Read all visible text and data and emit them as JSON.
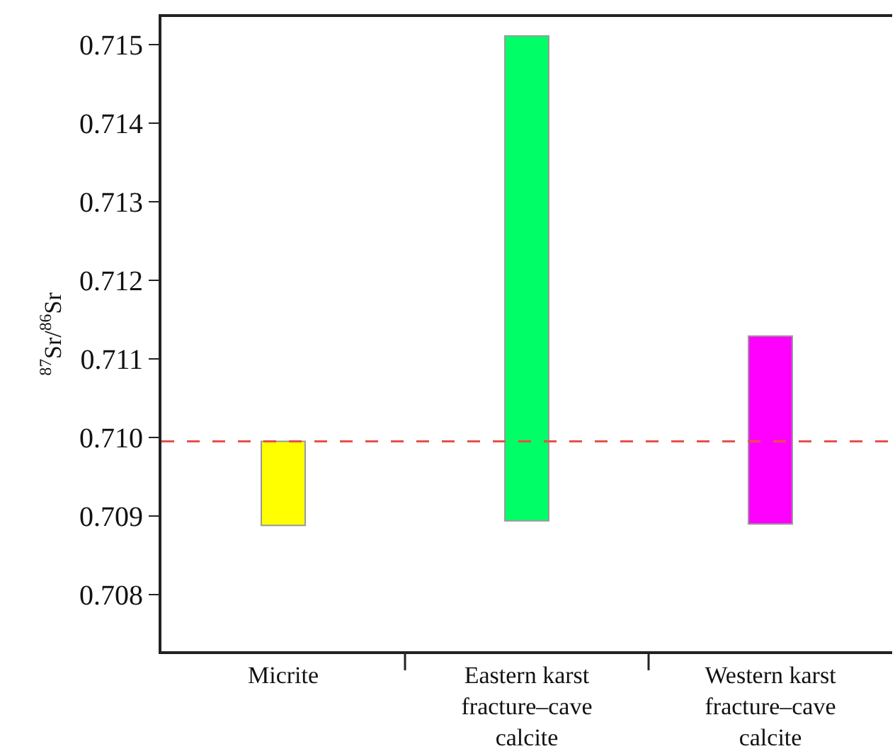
{
  "chart_data": {
    "type": "bar",
    "ylabel": "$^{87}$Sr/$^{86}$Sr",
    "categories": [
      "Micrite",
      "Eastern karst\nfracture–cave\ncalcite",
      "Western karst\nfracture–cave\ncalcite"
    ],
    "base": [
      0.70888,
      0.70894,
      0.7089
    ],
    "values": [
      0.00107,
      0.00617,
      0.00239
    ],
    "colors": [
      "#ffff00",
      "#00ff66",
      "#ff00ff"
    ],
    "ylim": [
      0.70728,
      0.71535
    ],
    "yticks": [
      {
        "value": 0.708,
        "label": "0.708"
      },
      {
        "value": 0.709,
        "label": "0.709"
      },
      {
        "value": 0.71,
        "label": "0.710"
      },
      {
        "value": 0.711,
        "label": "0.711"
      },
      {
        "value": 0.712,
        "label": "0.712"
      },
      {
        "value": 0.713,
        "label": "0.713"
      },
      {
        "value": 0.714,
        "label": "0.714"
      },
      {
        "value": 0.715,
        "label": "0.715"
      }
    ],
    "ref_lines": [
      {
        "axis": "y",
        "value": 0.70995,
        "color": "#e8504a",
        "line_style": "dashed"
      }
    ]
  }
}
